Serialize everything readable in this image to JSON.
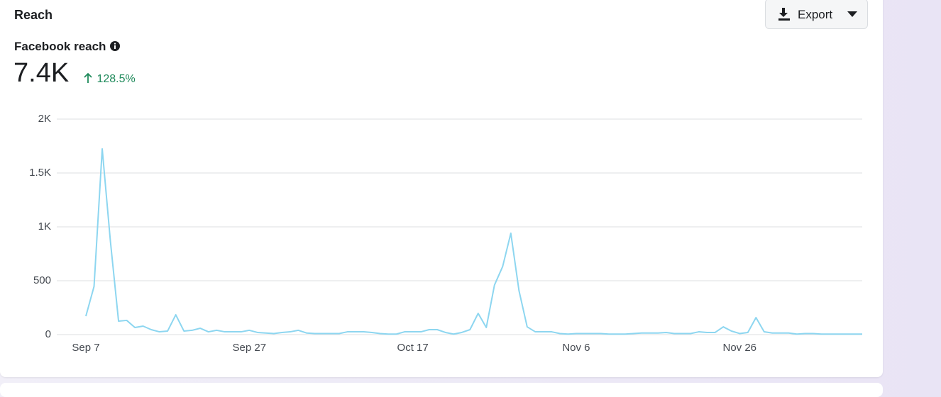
{
  "header": {
    "title": "Reach",
    "export": "Export"
  },
  "metric": {
    "label": "Facebook reach",
    "value": "7.4K",
    "change": "128.5%"
  },
  "chart_data": {
    "type": "line",
    "categories": [
      "Sep 7",
      null,
      null,
      null,
      null,
      null,
      null,
      null,
      null,
      null,
      null,
      null,
      null,
      null,
      null,
      null,
      null,
      null,
      null,
      null,
      "Sep 27",
      null,
      null,
      null,
      null,
      null,
      null,
      null,
      null,
      null,
      null,
      null,
      null,
      null,
      null,
      null,
      null,
      null,
      null,
      null,
      "Oct 17",
      null,
      null,
      null,
      null,
      null,
      null,
      null,
      null,
      null,
      null,
      null,
      null,
      null,
      null,
      null,
      null,
      null,
      null,
      null,
      "Nov 6",
      null,
      null,
      null,
      null,
      null,
      null,
      null,
      null,
      null,
      null,
      null,
      null,
      null,
      null,
      null,
      null,
      null,
      null,
      null,
      "Nov 26",
      null,
      null,
      null,
      null,
      null,
      null,
      null,
      null,
      null,
      null,
      null,
      null,
      null,
      null,
      null
    ],
    "series": [
      {
        "name": "Facebook reach",
        "color": "#8dd6f0",
        "values": [
          171,
          447,
          1724,
          868,
          125,
          132,
          66,
          79,
          46,
          26,
          33,
          184,
          33,
          40,
          59,
          26,
          40,
          26,
          26,
          26,
          40,
          20,
          15,
          10,
          20,
          26,
          40,
          15,
          10,
          10,
          10,
          10,
          26,
          26,
          26,
          20,
          10,
          5,
          5,
          26,
          26,
          26,
          46,
          46,
          20,
          5,
          20,
          46,
          197,
          66,
          460,
          632,
          941,
          408,
          72,
          26,
          26,
          26,
          10,
          5,
          10,
          10,
          10,
          10,
          5,
          5,
          5,
          10,
          15,
          15,
          15,
          20,
          10,
          10,
          10,
          26,
          20,
          20,
          72,
          33,
          10,
          20,
          158,
          26,
          15,
          15,
          15,
          5,
          10,
          10,
          5,
          5,
          5,
          5,
          5,
          5
        ]
      }
    ],
    "ylim": [
      0,
      2000
    ],
    "yticks": [
      0,
      500,
      {
        "value": 1000,
        "label": "1K"
      },
      {
        "value": 1500,
        "label": "1.5K"
      },
      {
        "value": 2000,
        "label": "2K"
      }
    ],
    "grid": true
  }
}
